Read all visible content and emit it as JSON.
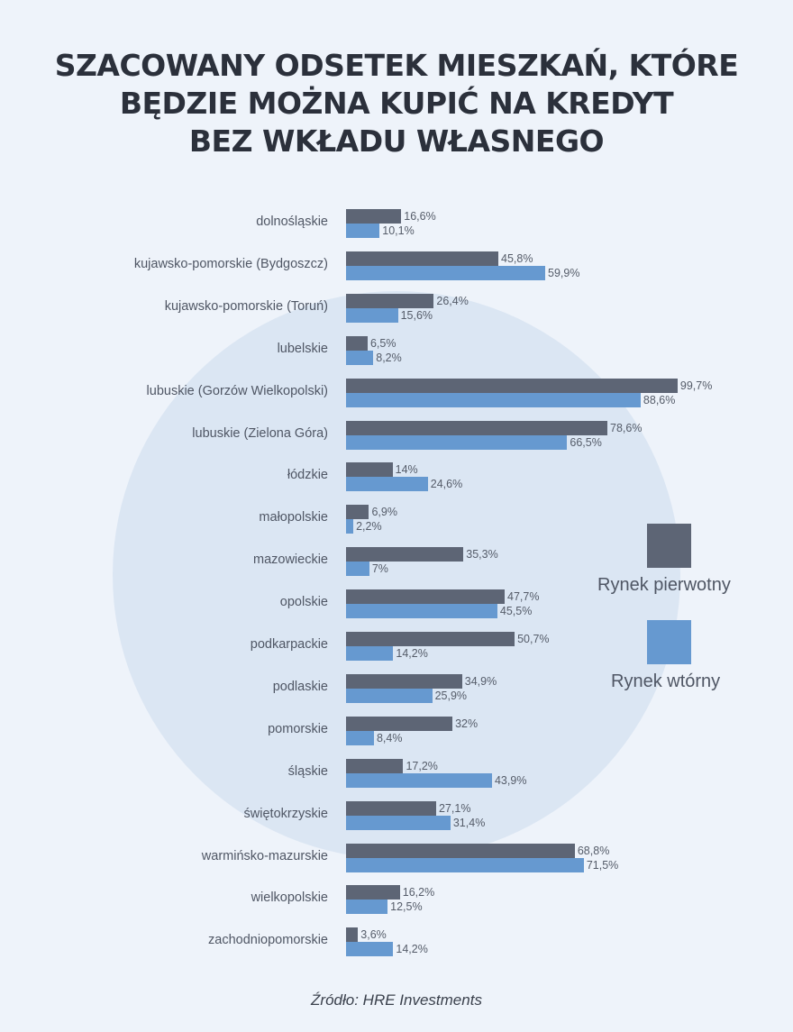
{
  "title": [
    "SZACOWANY ODSETEK MIESZKAŃ, KTÓRE",
    "BĘDZIE MOŻNA KUPIĆ NA KREDYT",
    "BEZ WKŁADU WŁASNEGO"
  ],
  "source": "Źródło: HRE Investments",
  "colors": {
    "primary": "#5d6575",
    "secondary": "#6699d0",
    "background": "#eef3fa",
    "circle": "#dbe6f3"
  },
  "chart_data": {
    "type": "bar",
    "orientation": "horizontal",
    "title": "SZACOWANY ODSETEK MIESZKAŃ, KTÓRE BĘDZIE MOŻNA KUPIĆ NA KREDYT BEZ WKŁADU WŁASNEGO",
    "xlabel": "",
    "ylabel": "",
    "xlim": [
      0,
      100
    ],
    "grid": false,
    "legend_position": "right",
    "categories": [
      "dolnośląskie",
      "kujawsko-pomorskie (Bydgoszcz)",
      "kujawsko-pomorskie (Toruń)",
      "lubelskie",
      "lubuskie (Gorzów Wielkopolski)",
      "lubuskie (Zielona Góra)",
      "łódzkie",
      "małopolskie",
      "mazowieckie",
      "opolskie",
      "podkarpackie",
      "podlaskie",
      "pomorskie",
      "śląskie",
      "świętokrzyskie",
      "warmińsko-mazurskie",
      "wielkopolskie",
      "zachodniopomorskie"
    ],
    "series": [
      {
        "name": "Rynek pierwotny",
        "values": [
          16.6,
          45.8,
          26.4,
          6.5,
          99.7,
          78.6,
          14,
          6.9,
          35.3,
          47.7,
          50.7,
          34.9,
          32,
          17.2,
          27.1,
          68.8,
          16.2,
          3.6
        ],
        "labels": [
          "16,6%",
          "45,8%",
          "26,4%",
          "6,5%",
          "99,7%",
          "78,6%",
          "14%",
          "6,9%",
          "35,3%",
          "47,7%",
          "50,7%",
          "34,9%",
          "32%",
          "17,2%",
          "27,1%",
          "68,8%",
          "16,2%",
          "3,6%"
        ]
      },
      {
        "name": "Rynek wtórny",
        "values": [
          10.1,
          59.9,
          15.6,
          8.2,
          88.6,
          66.5,
          24.6,
          2.2,
          7,
          45.5,
          14.2,
          25.9,
          8.4,
          43.9,
          31.4,
          71.5,
          12.5,
          14.2
        ],
        "labels": [
          "10,1%",
          "59,9%",
          "15,6%",
          "8,2%",
          "88,6%",
          "66,5%",
          "24,6%",
          "2,2%",
          "7%",
          "45,5%",
          "14,2%",
          "25,9%",
          "8,4%",
          "43,9%",
          "31,4%",
          "71,5%",
          "12,5%",
          "14,2%"
        ]
      }
    ]
  }
}
